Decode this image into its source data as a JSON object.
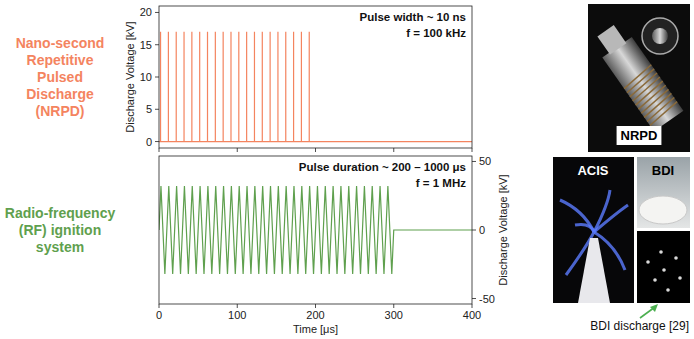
{
  "chart_data": [
    {
      "type": "line",
      "title": "Nano-second Repetitive Pulsed Discharge (NRPD)",
      "color": "#f4845f",
      "y_label": "Discharge Voltage [kV]",
      "annotations": [
        "Pulse width ~ 10 ns",
        "f = 100 kHz"
      ],
      "x": [
        0,
        2,
        2,
        2,
        12,
        12,
        12,
        22,
        22,
        22,
        32,
        32,
        32,
        42,
        42,
        42,
        52,
        52,
        52,
        62,
        62,
        62,
        72,
        72,
        72,
        82,
        82,
        82,
        92,
        92,
        92,
        102,
        102,
        102,
        112,
        112,
        112,
        122,
        122,
        122,
        132,
        132,
        132,
        142,
        142,
        142,
        152,
        152,
        152,
        162,
        162,
        162,
        172,
        172,
        172,
        182,
        182,
        182,
        192,
        192,
        192,
        400
      ],
      "values": [
        0,
        0,
        17,
        0,
        0,
        17,
        0,
        0,
        17,
        0,
        0,
        17,
        0,
        0,
        17,
        0,
        0,
        17,
        0,
        0,
        17,
        0,
        0,
        17,
        0,
        0,
        17,
        0,
        0,
        17,
        0,
        0,
        17,
        0,
        0,
        17,
        0,
        0,
        17,
        0,
        0,
        17,
        0,
        0,
        17,
        0,
        0,
        17,
        0,
        0,
        17,
        0,
        0,
        17,
        0,
        0,
        17,
        0,
        0,
        17,
        0,
        0
      ],
      "xlim": [
        0,
        400
      ],
      "xticks": [
        0,
        100,
        200,
        300,
        400
      ],
      "ylim": [
        -1,
        21
      ],
      "yticks": [
        0,
        5,
        10,
        15,
        20
      ],
      "tick_labels": "y"
    },
    {
      "type": "line",
      "title": "Radio-frequency (RF) ignition system",
      "color": "#5fa04e",
      "x_label": "Time [μs]",
      "y2_label": "Discharge Voltage [kV]",
      "annotations": [
        "Pulse duration ~ 200 – 1000 μs",
        "f = 1 MHz"
      ],
      "x": [
        0,
        2.5,
        7.5,
        12.5,
        17.5,
        22.5,
        27.5,
        32.5,
        37.5,
        42.5,
        47.5,
        52.5,
        57.5,
        62.5,
        67.5,
        72.5,
        77.5,
        82.5,
        87.5,
        92.5,
        97.5,
        102.5,
        107.5,
        112.5,
        117.5,
        122.5,
        127.5,
        132.5,
        137.5,
        142.5,
        147.5,
        152.5,
        157.5,
        162.5,
        167.5,
        172.5,
        177.5,
        182.5,
        187.5,
        192.5,
        197.5,
        202.5,
        207.5,
        212.5,
        217.5,
        222.5,
        227.5,
        232.5,
        237.5,
        242.5,
        247.5,
        252.5,
        257.5,
        262.5,
        267.5,
        272.5,
        277.5,
        282.5,
        287.5,
        292.5,
        297.5,
        300,
        400
      ],
      "values": [
        0,
        32,
        -32,
        32,
        -32,
        32,
        -32,
        32,
        -32,
        32,
        -32,
        32,
        -32,
        32,
        -32,
        32,
        -32,
        32,
        -32,
        32,
        -32,
        32,
        -32,
        32,
        -32,
        32,
        -32,
        32,
        -32,
        32,
        -32,
        32,
        -32,
        32,
        -32,
        32,
        -32,
        32,
        -32,
        32,
        -32,
        32,
        -32,
        32,
        -32,
        32,
        -32,
        32,
        -32,
        32,
        -32,
        32,
        -32,
        32,
        -32,
        32,
        -32,
        32,
        -32,
        32,
        -32,
        0,
        0
      ],
      "axis": "y2",
      "xlim": [
        0,
        400
      ],
      "xticks": [
        0,
        100,
        200,
        300,
        400
      ],
      "y2lim": [
        -54,
        54
      ],
      "y2ticks": [
        -50,
        0,
        50
      ],
      "tick_labels": true
    }
  ],
  "photos": [
    {
      "label": "NRPD"
    },
    {
      "label": "ACIS"
    },
    {
      "label": "BDI"
    },
    {
      "label": "BDI discharge [29]"
    }
  ]
}
